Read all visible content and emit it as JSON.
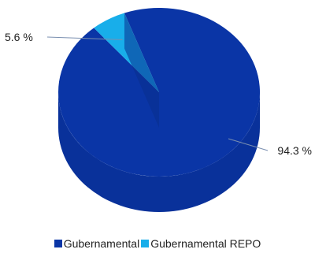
{
  "chart_data": {
    "type": "pie",
    "title": "",
    "categories": [
      "Gubernamental",
      "Gubernamental REPO"
    ],
    "values": [
      94.3,
      5.6
    ],
    "data_labels": [
      "94.3 %",
      "5.6 %"
    ],
    "colors": [
      "#0A35A6",
      "#18AEEA"
    ],
    "style": "3d",
    "legend_position": "bottom"
  }
}
